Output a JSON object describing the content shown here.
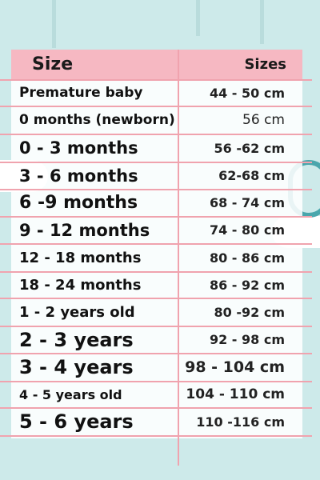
{
  "table": {
    "header": [
      "Size",
      "Sizes"
    ],
    "rows": [
      [
        "Premature baby",
        "44 - 50 cm"
      ],
      [
        "0 months (newborn)",
        "56 cm"
      ],
      [
        "0 - 3 months",
        "56 -62 cm"
      ],
      [
        "3 - 6 months",
        "62-68 cm"
      ],
      [
        "6 -9 months",
        "68 - 74 cm"
      ],
      [
        "9 - 12 months",
        "74 - 80 cm"
      ],
      [
        "12 - 18 months",
        "80 - 86 cm"
      ],
      [
        "18 - 24 months",
        "86 - 92 cm"
      ],
      [
        "1 - 2 years old",
        "80 -92 cm"
      ],
      [
        "2 - 3 years",
        "92 - 98 cm"
      ],
      [
        "3 - 4 years",
        "98 - 104 cm"
      ],
      [
        "4 - 5 years old",
        "104 - 110 cm"
      ],
      [
        "5 - 6 years",
        "110 -116 cm"
      ]
    ]
  }
}
